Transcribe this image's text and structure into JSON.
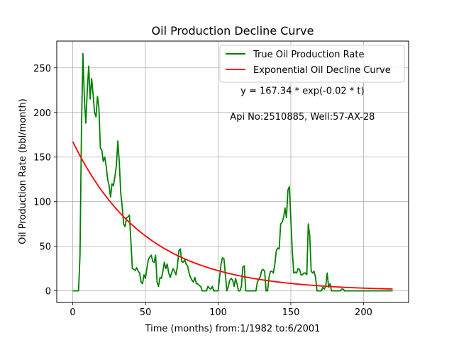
{
  "chart_data": {
    "type": "line",
    "title": "Oil Production Decline Curve",
    "xlabel": "Time (months) from:1/1982 to:6/2001",
    "ylabel": "Oil Production Rate (bbl/month)",
    "xlim": [
      -11,
      231
    ],
    "ylim": [
      -13,
      280
    ],
    "xticks": [
      0,
      50,
      100,
      150,
      200
    ],
    "yticks": [
      0,
      50,
      100,
      150,
      200,
      250
    ],
    "grid": true,
    "legend_position": "top-right",
    "annotations": [
      {
        "text": "y = 167.34 * exp(-0.02 * t)",
        "x": 158,
        "y": 221
      },
      {
        "text": "Api No:2510885, Well:57-AX-28",
        "x": 158,
        "y": 192
      }
    ],
    "series": [
      {
        "name": "True Oil Production Rate",
        "color": "#008000",
        "kind": "observed",
        "points": [
          [
            0,
            0
          ],
          [
            1,
            0
          ],
          [
            2,
            0
          ],
          [
            3,
            0
          ],
          [
            4,
            0
          ],
          [
            5,
            40
          ],
          [
            6,
            180
          ],
          [
            7,
            266
          ],
          [
            8,
            215
          ],
          [
            9,
            188
          ],
          [
            10,
            225
          ],
          [
            11,
            252
          ],
          [
            12,
            215
          ],
          [
            13,
            238
          ],
          [
            14,
            220
          ],
          [
            15,
            200
          ],
          [
            16,
            195
          ],
          [
            17,
            218
          ],
          [
            18,
            205
          ],
          [
            19,
            160
          ],
          [
            20,
            158
          ],
          [
            21,
            145
          ],
          [
            22,
            150
          ],
          [
            23,
            140
          ],
          [
            24,
            125
          ],
          [
            25,
            118
          ],
          [
            26,
            105
          ],
          [
            27,
            120
          ],
          [
            28,
            118
          ],
          [
            29,
            128
          ],
          [
            30,
            140
          ],
          [
            31,
            168
          ],
          [
            32,
            145
          ],
          [
            33,
            110
          ],
          [
            34,
            95
          ],
          [
            35,
            75
          ],
          [
            36,
            72
          ],
          [
            37,
            82
          ],
          [
            38,
            83
          ],
          [
            39,
            85
          ],
          [
            40,
            55
          ],
          [
            41,
            25
          ],
          [
            42,
            24
          ],
          [
            43,
            23
          ],
          [
            44,
            26
          ],
          [
            45,
            22
          ],
          [
            46,
            20
          ],
          [
            47,
            10
          ],
          [
            48,
            8
          ],
          [
            49,
            18
          ],
          [
            50,
            14
          ],
          [
            51,
            25
          ],
          [
            52,
            35
          ],
          [
            53,
            38
          ],
          [
            54,
            40
          ],
          [
            55,
            33
          ],
          [
            56,
            32
          ],
          [
            57,
            40
          ],
          [
            58,
            10
          ],
          [
            59,
            5
          ],
          [
            60,
            15
          ],
          [
            61,
            14
          ],
          [
            62,
            22
          ],
          [
            63,
            32
          ],
          [
            64,
            25
          ],
          [
            65,
            30
          ],
          [
            66,
            20
          ],
          [
            67,
            15
          ],
          [
            68,
            20
          ],
          [
            69,
            25
          ],
          [
            70,
            22
          ],
          [
            71,
            18
          ],
          [
            72,
            28
          ],
          [
            73,
            45
          ],
          [
            74,
            47
          ],
          [
            75,
            33
          ],
          [
            76,
            32
          ],
          [
            77,
            35
          ],
          [
            78,
            30
          ],
          [
            79,
            28
          ],
          [
            80,
            20
          ],
          [
            81,
            15
          ],
          [
            82,
            12
          ],
          [
            83,
            10
          ],
          [
            84,
            15
          ],
          [
            85,
            8
          ],
          [
            86,
            8
          ],
          [
            87,
            6
          ],
          [
            88,
            5
          ],
          [
            89,
            0
          ],
          [
            90,
            0
          ],
          [
            91,
            0
          ],
          [
            92,
            0
          ],
          [
            93,
            5
          ],
          [
            94,
            3
          ],
          [
            95,
            2
          ],
          [
            96,
            5
          ],
          [
            97,
            0
          ],
          [
            98,
            0
          ],
          [
            99,
            0
          ],
          [
            100,
            0
          ],
          [
            101,
            15
          ],
          [
            102,
            30
          ],
          [
            103,
            37
          ],
          [
            104,
            36
          ],
          [
            105,
            18
          ],
          [
            106,
            0
          ],
          [
            107,
            5
          ],
          [
            108,
            12
          ],
          [
            109,
            14
          ],
          [
            110,
            12
          ],
          [
            111,
            5
          ],
          [
            112,
            14
          ],
          [
            113,
            8
          ],
          [
            114,
            0
          ],
          [
            115,
            0
          ],
          [
            116,
            5
          ],
          [
            117,
            27
          ],
          [
            118,
            28
          ],
          [
            119,
            0
          ],
          [
            120,
            0
          ],
          [
            121,
            0
          ],
          [
            122,
            0
          ],
          [
            123,
            0
          ],
          [
            124,
            0
          ],
          [
            125,
            0
          ],
          [
            126,
            0
          ],
          [
            127,
            10
          ],
          [
            128,
            13
          ],
          [
            129,
            16
          ],
          [
            130,
            23
          ],
          [
            131,
            24
          ],
          [
            132,
            22
          ],
          [
            133,
            0
          ],
          [
            134,
            0
          ],
          [
            135,
            15
          ],
          [
            136,
            22
          ],
          [
            137,
            22
          ],
          [
            138,
            20
          ],
          [
            139,
            30
          ],
          [
            140,
            45
          ],
          [
            141,
            48
          ],
          [
            142,
            47
          ],
          [
            143,
            75
          ],
          [
            144,
            77
          ],
          [
            145,
            82
          ],
          [
            146,
            93
          ],
          [
            147,
            82
          ],
          [
            148,
            113
          ],
          [
            149,
            117
          ],
          [
            150,
            80
          ],
          [
            151,
            45
          ],
          [
            152,
            20
          ],
          [
            153,
            21
          ],
          [
            154,
            20
          ],
          [
            155,
            25
          ],
          [
            156,
            24
          ],
          [
            157,
            18
          ],
          [
            158,
            18
          ],
          [
            159,
            20
          ],
          [
            160,
            20
          ],
          [
            161,
            18
          ],
          [
            162,
            75
          ],
          [
            163,
            62
          ],
          [
            164,
            22
          ],
          [
            165,
            20
          ],
          [
            166,
            22
          ],
          [
            167,
            15
          ],
          [
            168,
            0
          ],
          [
            169,
            0
          ],
          [
            170,
            0
          ],
          [
            171,
            0
          ],
          [
            172,
            4
          ],
          [
            173,
            2
          ],
          [
            174,
            5
          ],
          [
            175,
            20
          ],
          [
            176,
            4
          ],
          [
            177,
            8
          ],
          [
            178,
            0
          ],
          [
            179,
            0
          ],
          [
            180,
            0
          ],
          [
            181,
            0
          ],
          [
            182,
            0
          ],
          [
            183,
            0
          ],
          [
            184,
            0
          ],
          [
            185,
            2
          ],
          [
            186,
            2
          ],
          [
            187,
            0
          ],
          [
            188,
            0
          ],
          [
            189,
            0
          ],
          [
            190,
            0
          ],
          [
            191,
            0
          ],
          [
            192,
            0
          ],
          [
            193,
            0
          ],
          [
            194,
            0
          ],
          [
            195,
            0
          ],
          [
            196,
            0
          ],
          [
            197,
            0
          ],
          [
            198,
            0
          ],
          [
            199,
            0
          ],
          [
            200,
            0
          ],
          [
            201,
            0
          ],
          [
            202,
            0
          ],
          [
            203,
            0
          ],
          [
            204,
            0
          ],
          [
            205,
            0
          ],
          [
            206,
            0
          ],
          [
            207,
            0
          ],
          [
            208,
            0
          ],
          [
            209,
            0
          ],
          [
            210,
            0
          ],
          [
            211,
            0
          ],
          [
            212,
            0
          ],
          [
            213,
            0
          ],
          [
            214,
            0
          ],
          [
            215,
            0
          ],
          [
            216,
            0
          ],
          [
            217,
            0
          ],
          [
            218,
            0
          ],
          [
            219,
            0
          ],
          [
            220,
            0
          ]
        ]
      },
      {
        "name": "Exponential Oil Decline Curve",
        "color": "#ff0000",
        "kind": "model",
        "model": {
          "a": 167.34,
          "b": -0.02,
          "t_start": 0,
          "t_end": 220
        }
      }
    ]
  }
}
